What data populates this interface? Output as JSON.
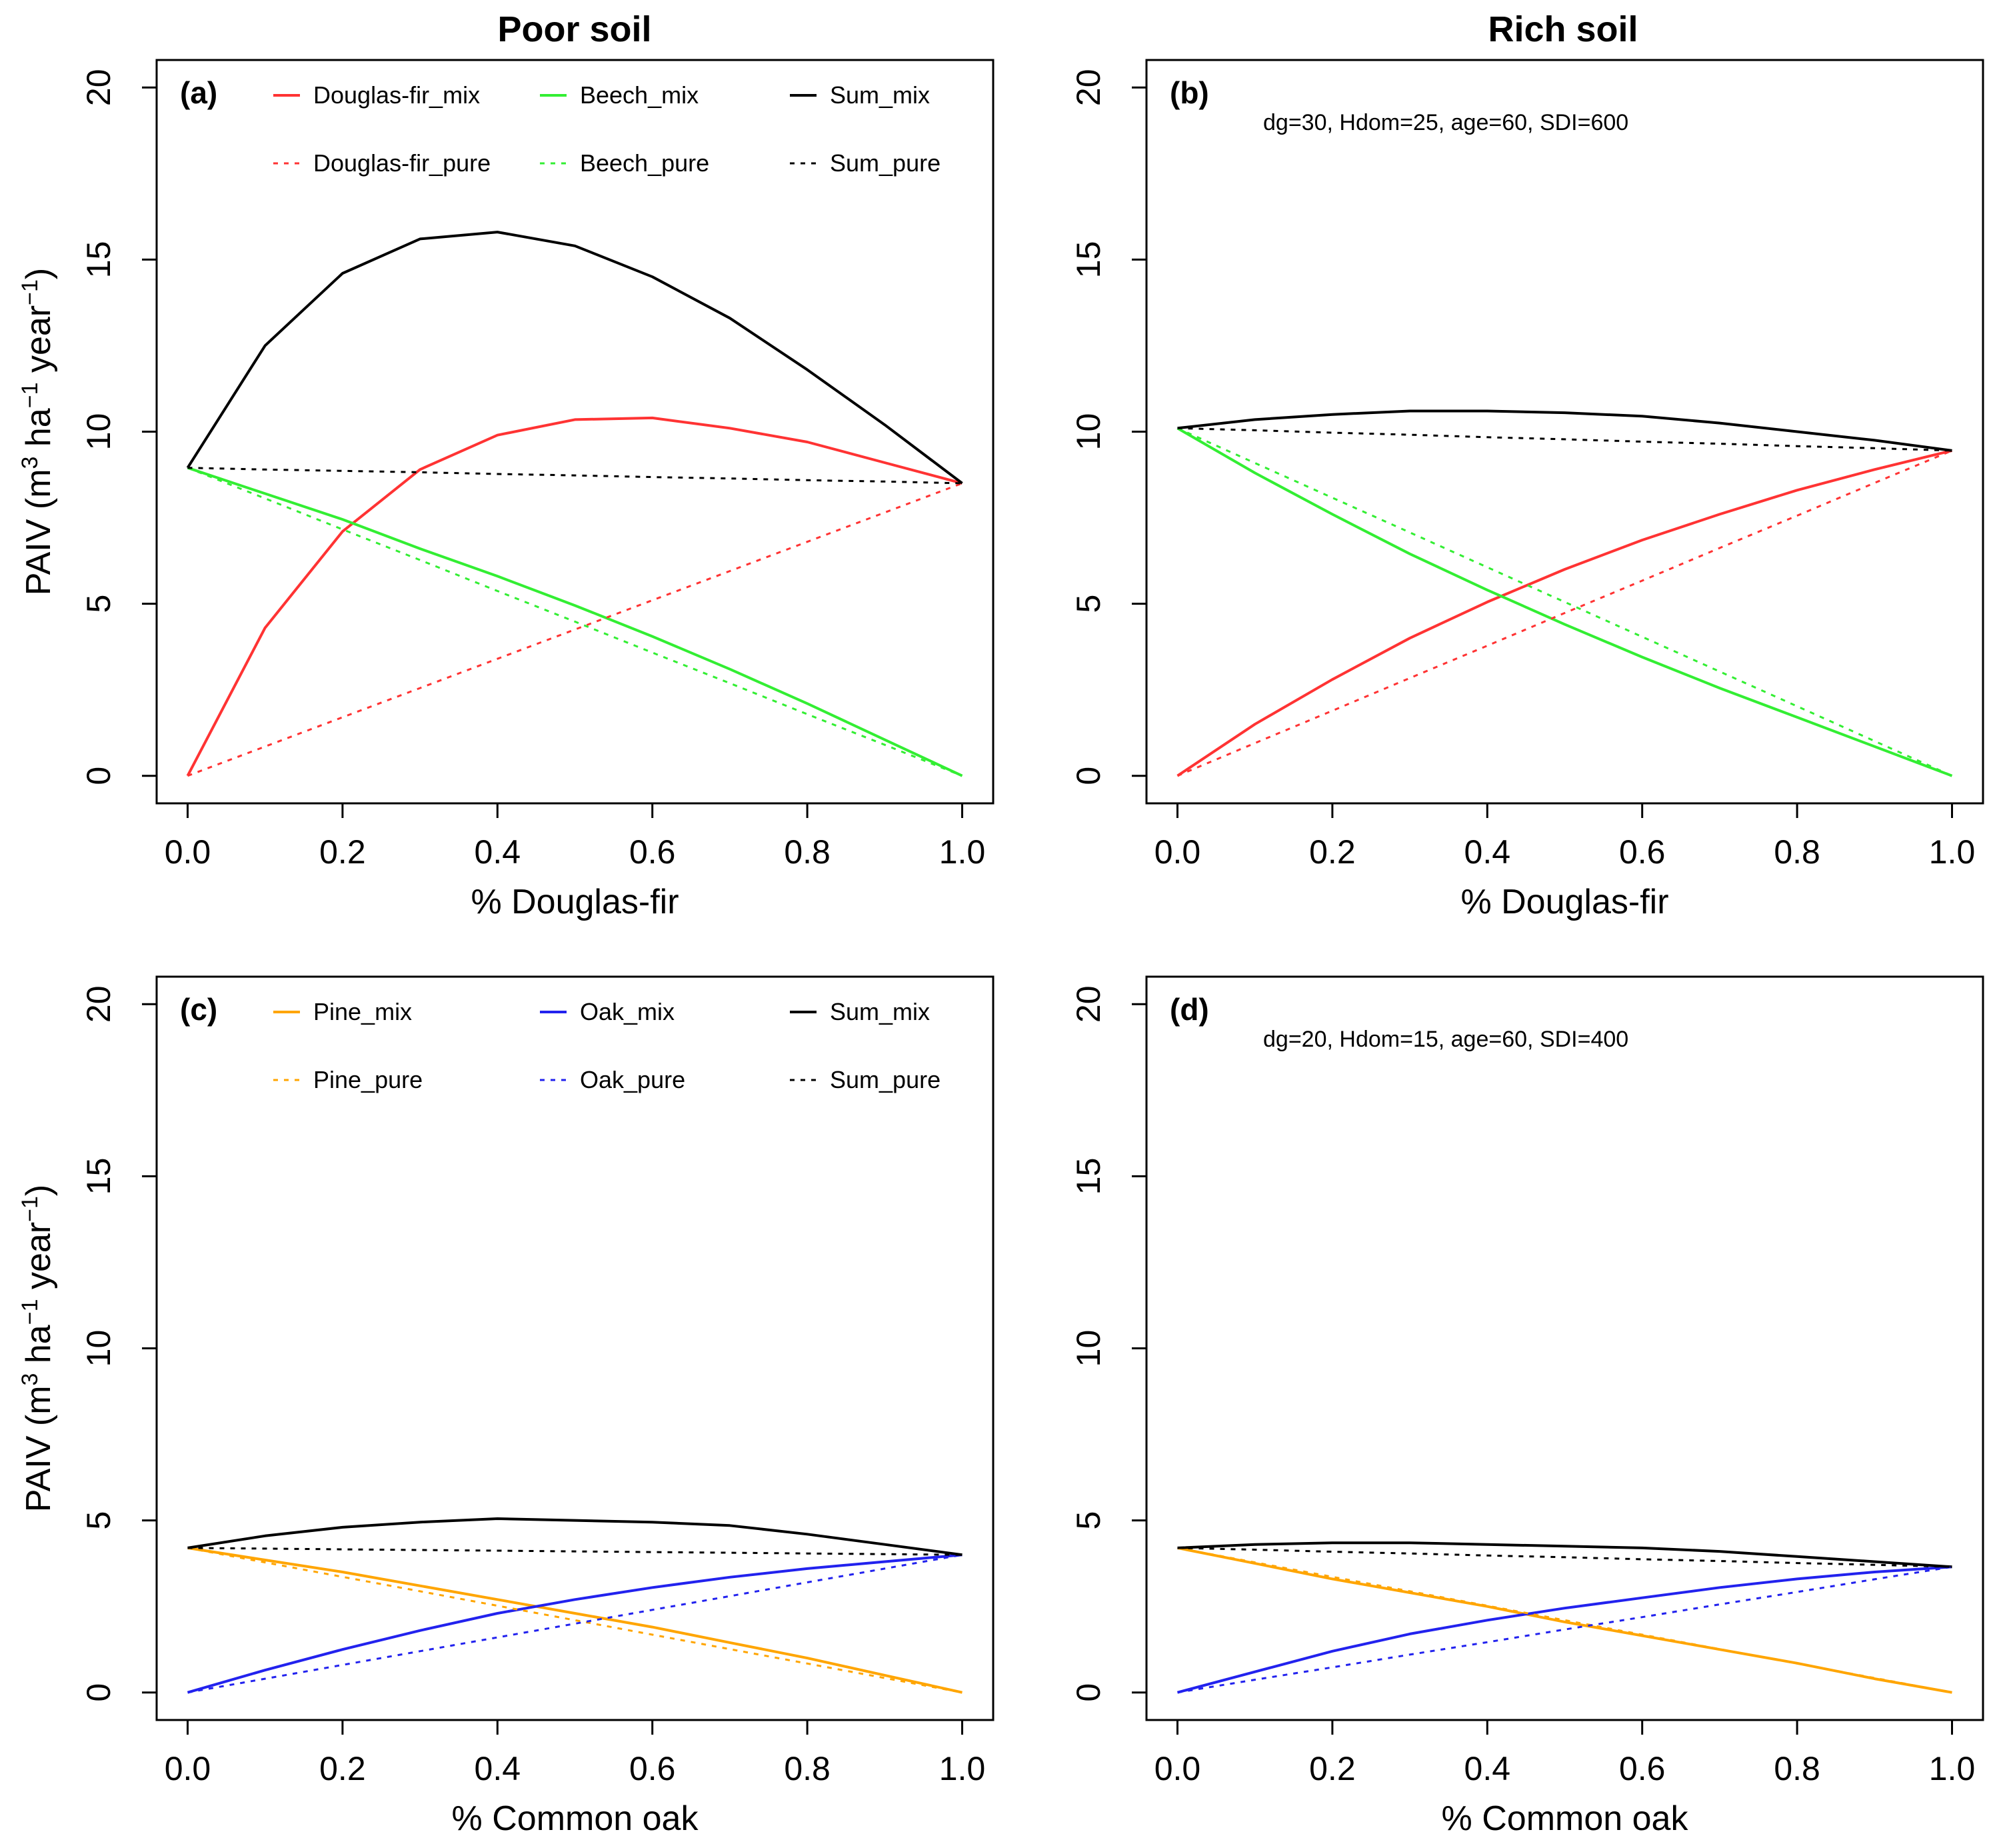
{
  "column_titles": [
    "Poor soil",
    "Rich soil"
  ],
  "ylabel": {
    "main": "PAIV (m",
    "sup1": "3",
    "mid": " ha",
    "sup2": "−1",
    "end": " year",
    "sup3": "−1",
    "close": ")"
  },
  "colors": {
    "douglas": "#ff3333",
    "beech": "#33ee33",
    "sum": "#000000",
    "pine": "#ffa500",
    "oak": "#2222ee"
  },
  "chart_data": [
    {
      "type": "line",
      "panel": "(a)",
      "annotation": "",
      "xlabel": "% Douglas-fir",
      "ylabel": "PAIV (m3 ha-1 year-1)",
      "xlim": [
        0,
        1
      ],
      "ylim": [
        0,
        20
      ],
      "xticks": [
        "0.0",
        "0.2",
        "0.4",
        "0.6",
        "0.8",
        "1.0"
      ],
      "yticks": [
        "0",
        "5",
        "10",
        "15",
        "20"
      ],
      "x": [
        0,
        0.1,
        0.2,
        0.3,
        0.4,
        0.5,
        0.6,
        0.7,
        0.8,
        0.9,
        1.0
      ],
      "legend": [
        [
          "Douglas-fir_mix",
          "Beech_mix",
          "Sum_mix"
        ],
        [
          "Douglas-fir_pure",
          "Beech_pure",
          "Sum_pure"
        ]
      ],
      "series": [
        {
          "name": "Douglas-fir_mix",
          "color_key": "douglas",
          "dash": false,
          "values": [
            0,
            4.3,
            7.1,
            8.9,
            9.9,
            10.35,
            10.4,
            10.1,
            9.7,
            9.1,
            8.5
          ]
        },
        {
          "name": "Beech_mix",
          "color_key": "beech",
          "dash": false,
          "values": [
            8.95,
            8.2,
            7.45,
            6.6,
            5.8,
            4.95,
            4.05,
            3.1,
            2.1,
            1.05,
            0
          ]
        },
        {
          "name": "Sum_mix",
          "color_key": "sum",
          "dash": false,
          "values": [
            8.95,
            12.5,
            14.6,
            15.6,
            15.8,
            15.4,
            14.5,
            13.3,
            11.8,
            10.2,
            8.5
          ]
        },
        {
          "name": "Douglas-fir_pure",
          "color_key": "douglas",
          "dash": true,
          "values": [
            0,
            0.85,
            1.7,
            2.55,
            3.4,
            4.25,
            5.1,
            5.95,
            6.8,
            7.65,
            8.5
          ]
        },
        {
          "name": "Beech_pure",
          "color_key": "beech",
          "dash": true,
          "values": [
            8.95,
            8.06,
            7.16,
            6.27,
            5.37,
            4.48,
            3.58,
            2.69,
            1.79,
            0.9,
            0
          ]
        },
        {
          "name": "Sum_pure",
          "color_key": "sum",
          "dash": true,
          "values": [
            8.95,
            8.9,
            8.86,
            8.82,
            8.77,
            8.73,
            8.68,
            8.64,
            8.59,
            8.55,
            8.5
          ]
        }
      ]
    },
    {
      "type": "line",
      "panel": "(b)",
      "annotation": "dg=30, Hdom=25, age=60, SDI=600",
      "xlabel": "% Douglas-fir",
      "ylabel": "",
      "xlim": [
        0,
        1
      ],
      "ylim": [
        0,
        20
      ],
      "xticks": [
        "0.0",
        "0.2",
        "0.4",
        "0.6",
        "0.8",
        "1.0"
      ],
      "yticks": [
        "0",
        "5",
        "10",
        "15",
        "20"
      ],
      "x": [
        0,
        0.1,
        0.2,
        0.3,
        0.4,
        0.5,
        0.6,
        0.7,
        0.8,
        0.9,
        1.0
      ],
      "legend": [],
      "series": [
        {
          "name": "Douglas-fir_mix",
          "color_key": "douglas",
          "dash": false,
          "values": [
            0,
            1.5,
            2.8,
            4.0,
            5.05,
            6.0,
            6.85,
            7.6,
            8.3,
            8.9,
            9.45
          ]
        },
        {
          "name": "Beech_mix",
          "color_key": "beech",
          "dash": false,
          "values": [
            10.1,
            8.8,
            7.6,
            6.45,
            5.4,
            4.4,
            3.45,
            2.55,
            1.7,
            0.85,
            0
          ]
        },
        {
          "name": "Sum_mix",
          "color_key": "sum",
          "dash": false,
          "values": [
            10.1,
            10.35,
            10.5,
            10.6,
            10.6,
            10.55,
            10.45,
            10.25,
            10.0,
            9.75,
            9.45
          ]
        },
        {
          "name": "Douglas-fir_pure",
          "color_key": "douglas",
          "dash": true,
          "values": [
            0,
            0.95,
            1.89,
            2.84,
            3.78,
            4.73,
            5.67,
            6.62,
            7.56,
            8.51,
            9.45
          ]
        },
        {
          "name": "Beech_pure",
          "color_key": "beech",
          "dash": true,
          "values": [
            10.1,
            9.09,
            8.08,
            7.07,
            6.06,
            5.05,
            4.04,
            3.03,
            2.02,
            1.01,
            0
          ]
        },
        {
          "name": "Sum_pure",
          "color_key": "sum",
          "dash": true,
          "values": [
            10.1,
            10.04,
            9.97,
            9.91,
            9.84,
            9.78,
            9.71,
            9.65,
            9.58,
            9.52,
            9.45
          ]
        }
      ]
    },
    {
      "type": "line",
      "panel": "(c)",
      "annotation": "",
      "xlabel": "% Common oak",
      "ylabel": "PAIV (m3 ha-1 year-1)",
      "xlim": [
        0,
        1
      ],
      "ylim": [
        0,
        20
      ],
      "xticks": [
        "0.0",
        "0.2",
        "0.4",
        "0.6",
        "0.8",
        "1.0"
      ],
      "yticks": [
        "0",
        "5",
        "10",
        "15",
        "20"
      ],
      "x": [
        0,
        0.1,
        0.2,
        0.3,
        0.4,
        0.5,
        0.6,
        0.7,
        0.8,
        0.9,
        1.0
      ],
      "legend": [
        [
          "Pine_mix",
          "Oak_mix",
          "Sum_mix"
        ],
        [
          "Pine_pure",
          "Oak_pure",
          "Sum_pure"
        ]
      ],
      "series": [
        {
          "name": "Pine_mix",
          "color_key": "pine",
          "dash": false,
          "values": [
            4.2,
            3.85,
            3.5,
            3.1,
            2.7,
            2.3,
            1.9,
            1.45,
            1.0,
            0.5,
            0
          ]
        },
        {
          "name": "Oak_mix",
          "color_key": "oak",
          "dash": false,
          "values": [
            0,
            0.65,
            1.25,
            1.8,
            2.3,
            2.7,
            3.05,
            3.35,
            3.6,
            3.8,
            4.0
          ]
        },
        {
          "name": "Sum_mix",
          "color_key": "sum",
          "dash": false,
          "values": [
            4.2,
            4.55,
            4.8,
            4.95,
            5.05,
            5.0,
            4.95,
            4.85,
            4.6,
            4.3,
            4.0
          ]
        },
        {
          "name": "Pine_pure",
          "color_key": "pine",
          "dash": true,
          "values": [
            4.2,
            3.78,
            3.36,
            2.94,
            2.52,
            2.1,
            1.68,
            1.26,
            0.84,
            0.42,
            0
          ]
        },
        {
          "name": "Oak_pure",
          "color_key": "oak",
          "dash": true,
          "values": [
            0,
            0.4,
            0.8,
            1.2,
            1.6,
            2.0,
            2.4,
            2.8,
            3.2,
            3.6,
            4.0
          ]
        },
        {
          "name": "Sum_pure",
          "color_key": "sum",
          "dash": true,
          "values": [
            4.2,
            4.18,
            4.16,
            4.14,
            4.12,
            4.1,
            4.08,
            4.06,
            4.04,
            4.02,
            4.0
          ]
        }
      ]
    },
    {
      "type": "line",
      "panel": "(d)",
      "annotation": "dg=20, Hdom=15, age=60, SDI=400",
      "xlabel": "% Common oak",
      "ylabel": "",
      "xlim": [
        0,
        1
      ],
      "ylim": [
        0,
        20
      ],
      "xticks": [
        "0.0",
        "0.2",
        "0.4",
        "0.6",
        "0.8",
        "1.0"
      ],
      "yticks": [
        "0",
        "5",
        "10",
        "15",
        "20"
      ],
      "x": [
        0,
        0.1,
        0.2,
        0.3,
        0.4,
        0.5,
        0.6,
        0.7,
        0.8,
        0.9,
        1.0
      ],
      "legend": [],
      "series": [
        {
          "name": "Pine_mix",
          "color_key": "pine",
          "dash": false,
          "values": [
            4.2,
            3.75,
            3.3,
            2.9,
            2.5,
            2.05,
            1.65,
            1.25,
            0.85,
            0.4,
            0
          ]
        },
        {
          "name": "Oak_mix",
          "color_key": "oak",
          "dash": false,
          "values": [
            0,
            0.6,
            1.2,
            1.7,
            2.1,
            2.45,
            2.75,
            3.05,
            3.3,
            3.5,
            3.65
          ]
        },
        {
          "name": "Sum_mix",
          "color_key": "sum",
          "dash": false,
          "values": [
            4.2,
            4.3,
            4.35,
            4.35,
            4.3,
            4.25,
            4.2,
            4.1,
            3.95,
            3.8,
            3.65
          ]
        },
        {
          "name": "Pine_pure",
          "color_key": "pine",
          "dash": true,
          "values": [
            4.2,
            3.78,
            3.36,
            2.94,
            2.52,
            2.1,
            1.68,
            1.26,
            0.84,
            0.42,
            0
          ]
        },
        {
          "name": "Oak_pure",
          "color_key": "oak",
          "dash": true,
          "values": [
            0,
            0.37,
            0.73,
            1.1,
            1.46,
            1.83,
            2.19,
            2.56,
            2.92,
            3.29,
            3.65
          ]
        },
        {
          "name": "Sum_pure",
          "color_key": "sum",
          "dash": true,
          "values": [
            4.2,
            4.15,
            4.09,
            4.04,
            3.98,
            3.93,
            3.87,
            3.82,
            3.76,
            3.71,
            3.65
          ]
        }
      ]
    }
  ]
}
